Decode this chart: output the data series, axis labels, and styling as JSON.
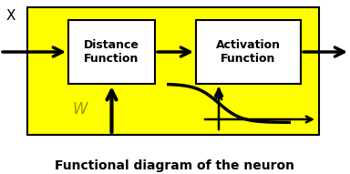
{
  "title": "Functional diagram of the neuron",
  "title_fontsize": 10,
  "background_color": "#ffff00",
  "fig_background": "#ffffff",
  "box1_label": "Distance\nFunction",
  "box2_label": "Activation\nFunction",
  "x_label": "X",
  "w_label": "W",
  "arrow_color": "#000000",
  "box_bg": "#ffffff"
}
